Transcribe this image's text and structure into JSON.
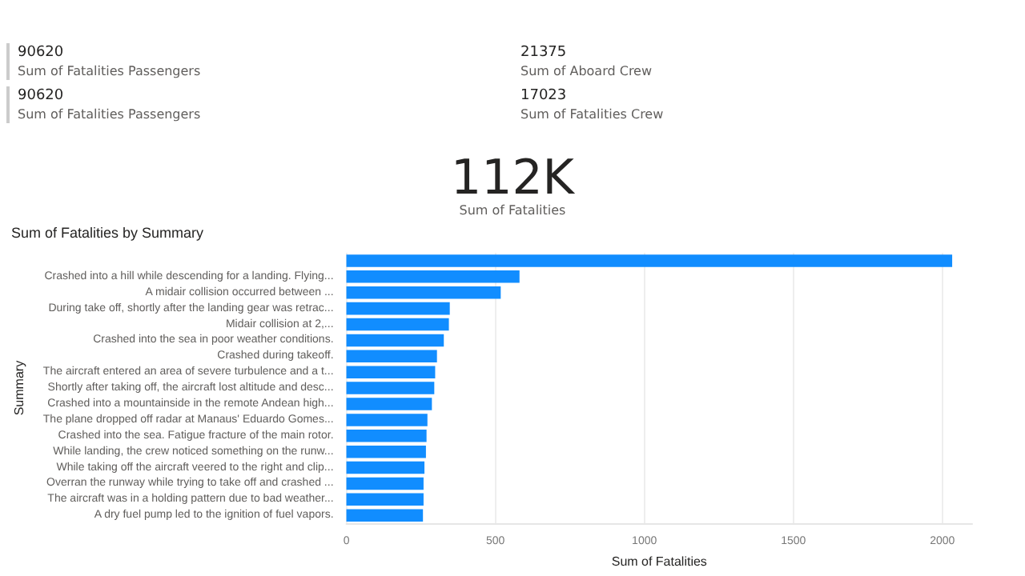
{
  "chart_data": [
    {
      "type": "other",
      "annotations": [
        "90620",
        "Sum of Fatalities Passengers",
        "21375",
        "Sum of Aboard Crew",
        "90620",
        "Sum of Fatalities Passengers",
        "17023",
        "Sum of Fatalities Crew",
        "112K",
        "Sum of Fatalities"
      ]
    },
    {
      "type": "bar",
      "orientation": "horizontal",
      "title": "Sum of Fatalities by Summary",
      "xlabel": "Sum of Fatalities",
      "ylabel": "Summary",
      "color": "#118dff",
      "categories": [
        null,
        "Crashed into a hill while descending for a landing. Flying...",
        "A midair collision occurred between ...",
        "During take off, shortly after the landing gear was retrac...",
        "Midair collision at 2,...",
        "Crashed into the sea in poor weather conditions.",
        "Crashed during takeoff.",
        "The aircraft entered an area of severe turbulence and a t...",
        "Shortly after taking off, the aircraft lost altitude and desc...",
        "Crashed into a mountainside in the remote Andean high...",
        "The plane dropped off radar at Manaus' Eduardo Gomes...",
        "Crashed into the sea. Fatigue fracture of the main rotor.",
        "While landing, the crew noticed something on the runw...",
        "While taking off the aircraft veered to the right and clip...",
        "Overran the runway while trying to take off and crashed ...",
        "The aircraft was in a holding pattern due to bad weather...",
        "A dry fuel pump led to the ignition of fuel vapors."
      ],
      "values": [
        2033,
        581,
        518,
        347,
        344,
        327,
        304,
        298,
        295,
        287,
        272,
        269,
        267,
        262,
        259,
        259,
        257
      ],
      "xlim": [
        0,
        2100
      ],
      "xticks": [
        0,
        500,
        1000,
        1500,
        2000
      ],
      "grid": "x"
    }
  ]
}
